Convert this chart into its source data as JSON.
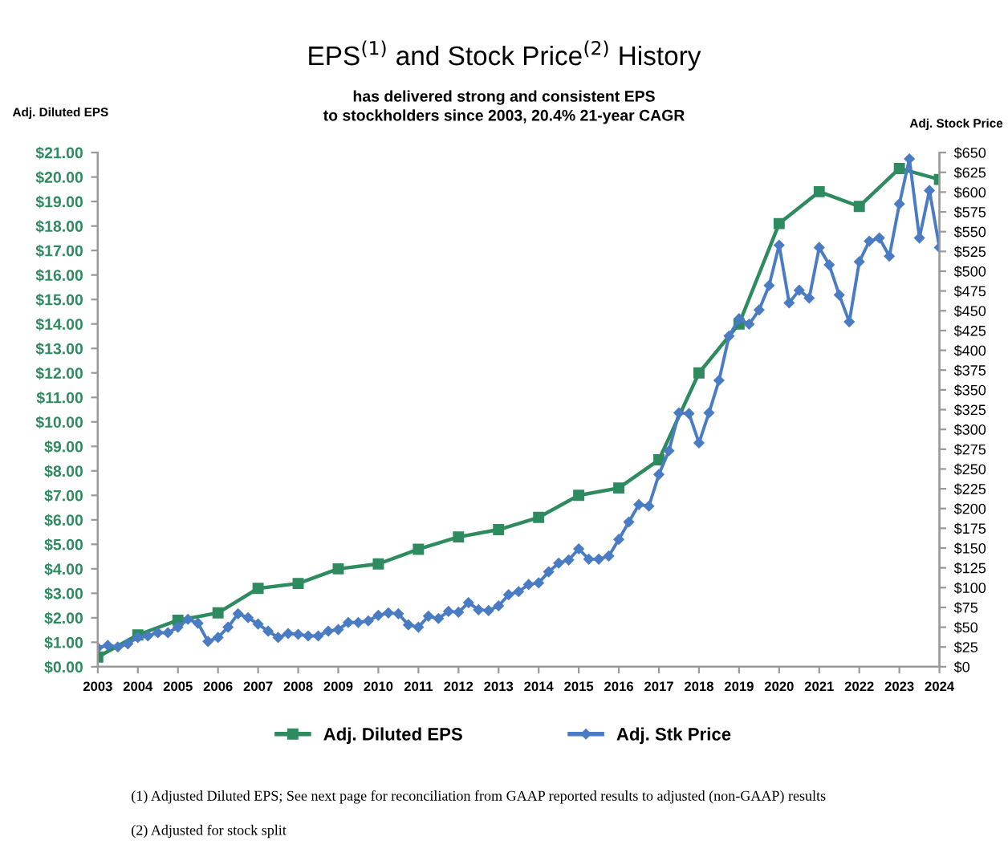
{
  "chart_data": {
    "type": "line",
    "title": "EPS$^{(1)}$ and Stock Price$^{(2)}$ History",
    "subtitle": "has delivered strong and consistent EPS\nto stockholders since 2003, 20.4% 21-year CAGR",
    "ylabel": "Adj. Diluted EPS",
    "y2label": "Adj. Stock Price",
    "xlim": [
      2003,
      2024
    ],
    "xticks": [
      2003,
      2004,
      2005,
      2006,
      2007,
      2008,
      2009,
      2010,
      2011,
      2012,
      2013,
      2014,
      2015,
      2016,
      2017,
      2018,
      2019,
      2020,
      2021,
      2022,
      2023,
      2024
    ],
    "ylim": [
      0,
      21
    ],
    "yticks": [
      {
        "value": 0,
        "label": "$0.00"
      },
      {
        "value": 1,
        "label": "$1.00"
      },
      {
        "value": 2,
        "label": "$2.00"
      },
      {
        "value": 3,
        "label": "$3.00"
      },
      {
        "value": 4,
        "label": "$4.00"
      },
      {
        "value": 5,
        "label": "$5.00"
      },
      {
        "value": 6,
        "label": "$6.00"
      },
      {
        "value": 7,
        "label": "$7.00"
      },
      {
        "value": 8,
        "label": "$8.00"
      },
      {
        "value": 9,
        "label": "$9.00"
      },
      {
        "value": 10,
        "label": "$10.00"
      },
      {
        "value": 11,
        "label": "$11.00"
      },
      {
        "value": 12,
        "label": "$12.00"
      },
      {
        "value": 13,
        "label": "$13.00"
      },
      {
        "value": 14,
        "label": "$14.00"
      },
      {
        "value": 15,
        "label": "$15.00"
      },
      {
        "value": 16,
        "label": "$16.00"
      },
      {
        "value": 17,
        "label": "$17.00"
      },
      {
        "value": 18,
        "label": "$18.00"
      },
      {
        "value": 19,
        "label": "$19.00"
      },
      {
        "value": 20,
        "label": "$20.00"
      },
      {
        "value": 21,
        "label": "$21.00"
      }
    ],
    "y2lim": [
      0,
      650
    ],
    "y2ticks": [
      {
        "value": 0,
        "label": "$0"
      },
      {
        "value": 25,
        "label": "$25"
      },
      {
        "value": 50,
        "label": "$50"
      },
      {
        "value": 75,
        "label": "$75"
      },
      {
        "value": 100,
        "label": "$100"
      },
      {
        "value": 125,
        "label": "$125"
      },
      {
        "value": 150,
        "label": "$150"
      },
      {
        "value": 175,
        "label": "$175"
      },
      {
        "value": 200,
        "label": "$200"
      },
      {
        "value": 225,
        "label": "$225"
      },
      {
        "value": 250,
        "label": "$250"
      },
      {
        "value": 275,
        "label": "$275"
      },
      {
        "value": 300,
        "label": "$300"
      },
      {
        "value": 325,
        "label": "$325"
      },
      {
        "value": 350,
        "label": "$350"
      },
      {
        "value": 375,
        "label": "$375"
      },
      {
        "value": 400,
        "label": "$400"
      },
      {
        "value": 425,
        "label": "$425"
      },
      {
        "value": 450,
        "label": "$450"
      },
      {
        "value": 475,
        "label": "$475"
      },
      {
        "value": 500,
        "label": "$500"
      },
      {
        "value": 525,
        "label": "$525"
      },
      {
        "value": 550,
        "label": "$550"
      },
      {
        "value": 575,
        "label": "$575"
      },
      {
        "value": 600,
        "label": "$600"
      },
      {
        "value": 625,
        "label": "$625"
      },
      {
        "value": 650,
        "label": "$650"
      }
    ],
    "series": [
      {
        "name": "Adj. Diluted EPS",
        "color": "#2e8b5f",
        "marker": "square",
        "x": [
          2003,
          2004,
          2005,
          2006,
          2007,
          2008,
          2009,
          2010,
          2011,
          2012,
          2013,
          2014,
          2015,
          2016,
          2017,
          2018,
          2019,
          2020,
          2021,
          2022,
          2023,
          2024
        ],
        "values": [
          0.4,
          1.3,
          1.9,
          2.2,
          3.2,
          3.4,
          4.0,
          4.2,
          4.8,
          5.3,
          5.6,
          6.1,
          7.0,
          7.3,
          8.45,
          12.0,
          14.0,
          18.1,
          19.4,
          18.8,
          20.35,
          19.9
        ]
      },
      {
        "name": "Adj. Stk Price",
        "color": "#4a7cc4",
        "marker": "diamond",
        "axis": "y2",
        "x": [
          2003,
          2003.25,
          2003.5,
          2003.75,
          2004,
          2004.25,
          2004.5,
          2004.75,
          2005,
          2005.25,
          2005.5,
          2005.75,
          2006,
          2006.25,
          2006.5,
          2006.75,
          2007,
          2007.25,
          2007.5,
          2007.75,
          2008,
          2008.25,
          2008.5,
          2008.75,
          2009,
          2009.25,
          2009.5,
          2009.75,
          2010,
          2010.25,
          2010.5,
          2010.75,
          2011,
          2011.25,
          2011.5,
          2011.75,
          2012,
          2012.25,
          2012.5,
          2012.75,
          2013,
          2013.25,
          2013.5,
          2013.75,
          2014,
          2014.25,
          2014.5,
          2014.75,
          2015,
          2015.25,
          2015.5,
          2015.75,
          2016,
          2016.25,
          2016.5,
          2016.75,
          2017,
          2017.25,
          2017.5,
          2017.75,
          2018,
          2018.25,
          2018.5,
          2018.75,
          2019,
          2019.25,
          2019.5,
          2019.75,
          2020,
          2020.25,
          2020.5,
          2020.75,
          2021,
          2021.25,
          2021.5,
          2021.75,
          2022,
          2022.25,
          2022.5,
          2022.75,
          2023,
          2023.25,
          2023.5,
          2023.75,
          2024
        ],
        "values": [
          24,
          27,
          25,
          29,
          37,
          39,
          43,
          43,
          50,
          60,
          55,
          32,
          37,
          50,
          67,
          62,
          54,
          45,
          37,
          42,
          41,
          39,
          39,
          45,
          47,
          56,
          56,
          58,
          65,
          68,
          67,
          53,
          50,
          64,
          61,
          70,
          69,
          81,
          72,
          71,
          77,
          91,
          95,
          104,
          106,
          120,
          131,
          135,
          149,
          136,
          136,
          140,
          161,
          183,
          205,
          203,
          243,
          273,
          321,
          320,
          283,
          321,
          362,
          418,
          440,
          433,
          451,
          482,
          533,
          460,
          476,
          466,
          530,
          508,
          470,
          436,
          512,
          538,
          542,
          519,
          585,
          642,
          542,
          602,
          530
        ]
      }
    ],
    "legend": "bottom",
    "grid": false,
    "annotations": [
      "(1) Adjusted Diluted EPS; See next page for reconciliation from GAAP reported results to adjusted (non-GAAP) results",
      "(2) Adjusted for stock split"
    ]
  }
}
